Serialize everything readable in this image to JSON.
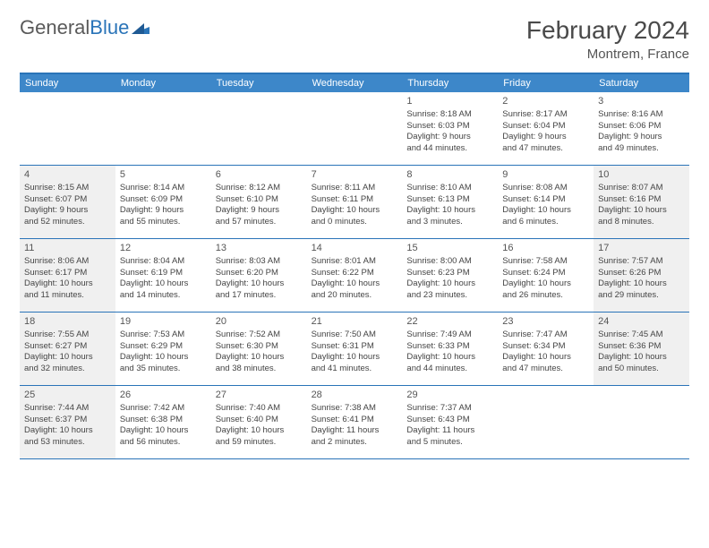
{
  "logo": {
    "word1": "General",
    "word2": "Blue"
  },
  "title": "February 2024",
  "location": "Montrem, France",
  "colors": {
    "header_bg": "#3d87c9",
    "border": "#2a74b8",
    "shade": "#f0f0f0",
    "text": "#444444",
    "title_text": "#4a4a4a"
  },
  "weekdays": [
    "Sunday",
    "Monday",
    "Tuesday",
    "Wednesday",
    "Thursday",
    "Friday",
    "Saturday"
  ],
  "weeks": [
    [
      {
        "empty": true
      },
      {
        "empty": true
      },
      {
        "empty": true
      },
      {
        "empty": true
      },
      {
        "num": "1",
        "sunrise": "Sunrise: 8:18 AM",
        "sunset": "Sunset: 6:03 PM",
        "day1": "Daylight: 9 hours",
        "day2": "and 44 minutes."
      },
      {
        "num": "2",
        "sunrise": "Sunrise: 8:17 AM",
        "sunset": "Sunset: 6:04 PM",
        "day1": "Daylight: 9 hours",
        "day2": "and 47 minutes."
      },
      {
        "num": "3",
        "sunrise": "Sunrise: 8:16 AM",
        "sunset": "Sunset: 6:06 PM",
        "day1": "Daylight: 9 hours",
        "day2": "and 49 minutes."
      }
    ],
    [
      {
        "num": "4",
        "shade": true,
        "sunrise": "Sunrise: 8:15 AM",
        "sunset": "Sunset: 6:07 PM",
        "day1": "Daylight: 9 hours",
        "day2": "and 52 minutes."
      },
      {
        "num": "5",
        "sunrise": "Sunrise: 8:14 AM",
        "sunset": "Sunset: 6:09 PM",
        "day1": "Daylight: 9 hours",
        "day2": "and 55 minutes."
      },
      {
        "num": "6",
        "sunrise": "Sunrise: 8:12 AM",
        "sunset": "Sunset: 6:10 PM",
        "day1": "Daylight: 9 hours",
        "day2": "and 57 minutes."
      },
      {
        "num": "7",
        "sunrise": "Sunrise: 8:11 AM",
        "sunset": "Sunset: 6:11 PM",
        "day1": "Daylight: 10 hours",
        "day2": "and 0 minutes."
      },
      {
        "num": "8",
        "sunrise": "Sunrise: 8:10 AM",
        "sunset": "Sunset: 6:13 PM",
        "day1": "Daylight: 10 hours",
        "day2": "and 3 minutes."
      },
      {
        "num": "9",
        "sunrise": "Sunrise: 8:08 AM",
        "sunset": "Sunset: 6:14 PM",
        "day1": "Daylight: 10 hours",
        "day2": "and 6 minutes."
      },
      {
        "num": "10",
        "shade": true,
        "sunrise": "Sunrise: 8:07 AM",
        "sunset": "Sunset: 6:16 PM",
        "day1": "Daylight: 10 hours",
        "day2": "and 8 minutes."
      }
    ],
    [
      {
        "num": "11",
        "shade": true,
        "sunrise": "Sunrise: 8:06 AM",
        "sunset": "Sunset: 6:17 PM",
        "day1": "Daylight: 10 hours",
        "day2": "and 11 minutes."
      },
      {
        "num": "12",
        "sunrise": "Sunrise: 8:04 AM",
        "sunset": "Sunset: 6:19 PM",
        "day1": "Daylight: 10 hours",
        "day2": "and 14 minutes."
      },
      {
        "num": "13",
        "sunrise": "Sunrise: 8:03 AM",
        "sunset": "Sunset: 6:20 PM",
        "day1": "Daylight: 10 hours",
        "day2": "and 17 minutes."
      },
      {
        "num": "14",
        "sunrise": "Sunrise: 8:01 AM",
        "sunset": "Sunset: 6:22 PM",
        "day1": "Daylight: 10 hours",
        "day2": "and 20 minutes."
      },
      {
        "num": "15",
        "sunrise": "Sunrise: 8:00 AM",
        "sunset": "Sunset: 6:23 PM",
        "day1": "Daylight: 10 hours",
        "day2": "and 23 minutes."
      },
      {
        "num": "16",
        "sunrise": "Sunrise: 7:58 AM",
        "sunset": "Sunset: 6:24 PM",
        "day1": "Daylight: 10 hours",
        "day2": "and 26 minutes."
      },
      {
        "num": "17",
        "shade": true,
        "sunrise": "Sunrise: 7:57 AM",
        "sunset": "Sunset: 6:26 PM",
        "day1": "Daylight: 10 hours",
        "day2": "and 29 minutes."
      }
    ],
    [
      {
        "num": "18",
        "shade": true,
        "sunrise": "Sunrise: 7:55 AM",
        "sunset": "Sunset: 6:27 PM",
        "day1": "Daylight: 10 hours",
        "day2": "and 32 minutes."
      },
      {
        "num": "19",
        "sunrise": "Sunrise: 7:53 AM",
        "sunset": "Sunset: 6:29 PM",
        "day1": "Daylight: 10 hours",
        "day2": "and 35 minutes."
      },
      {
        "num": "20",
        "sunrise": "Sunrise: 7:52 AM",
        "sunset": "Sunset: 6:30 PM",
        "day1": "Daylight: 10 hours",
        "day2": "and 38 minutes."
      },
      {
        "num": "21",
        "sunrise": "Sunrise: 7:50 AM",
        "sunset": "Sunset: 6:31 PM",
        "day1": "Daylight: 10 hours",
        "day2": "and 41 minutes."
      },
      {
        "num": "22",
        "sunrise": "Sunrise: 7:49 AM",
        "sunset": "Sunset: 6:33 PM",
        "day1": "Daylight: 10 hours",
        "day2": "and 44 minutes."
      },
      {
        "num": "23",
        "sunrise": "Sunrise: 7:47 AM",
        "sunset": "Sunset: 6:34 PM",
        "day1": "Daylight: 10 hours",
        "day2": "and 47 minutes."
      },
      {
        "num": "24",
        "shade": true,
        "sunrise": "Sunrise: 7:45 AM",
        "sunset": "Sunset: 6:36 PM",
        "day1": "Daylight: 10 hours",
        "day2": "and 50 minutes."
      }
    ],
    [
      {
        "num": "25",
        "shade": true,
        "sunrise": "Sunrise: 7:44 AM",
        "sunset": "Sunset: 6:37 PM",
        "day1": "Daylight: 10 hours",
        "day2": "and 53 minutes."
      },
      {
        "num": "26",
        "sunrise": "Sunrise: 7:42 AM",
        "sunset": "Sunset: 6:38 PM",
        "day1": "Daylight: 10 hours",
        "day2": "and 56 minutes."
      },
      {
        "num": "27",
        "sunrise": "Sunrise: 7:40 AM",
        "sunset": "Sunset: 6:40 PM",
        "day1": "Daylight: 10 hours",
        "day2": "and 59 minutes."
      },
      {
        "num": "28",
        "sunrise": "Sunrise: 7:38 AM",
        "sunset": "Sunset: 6:41 PM",
        "day1": "Daylight: 11 hours",
        "day2": "and 2 minutes."
      },
      {
        "num": "29",
        "sunrise": "Sunrise: 7:37 AM",
        "sunset": "Sunset: 6:43 PM",
        "day1": "Daylight: 11 hours",
        "day2": "and 5 minutes."
      },
      {
        "empty": true
      },
      {
        "empty": true
      }
    ]
  ]
}
